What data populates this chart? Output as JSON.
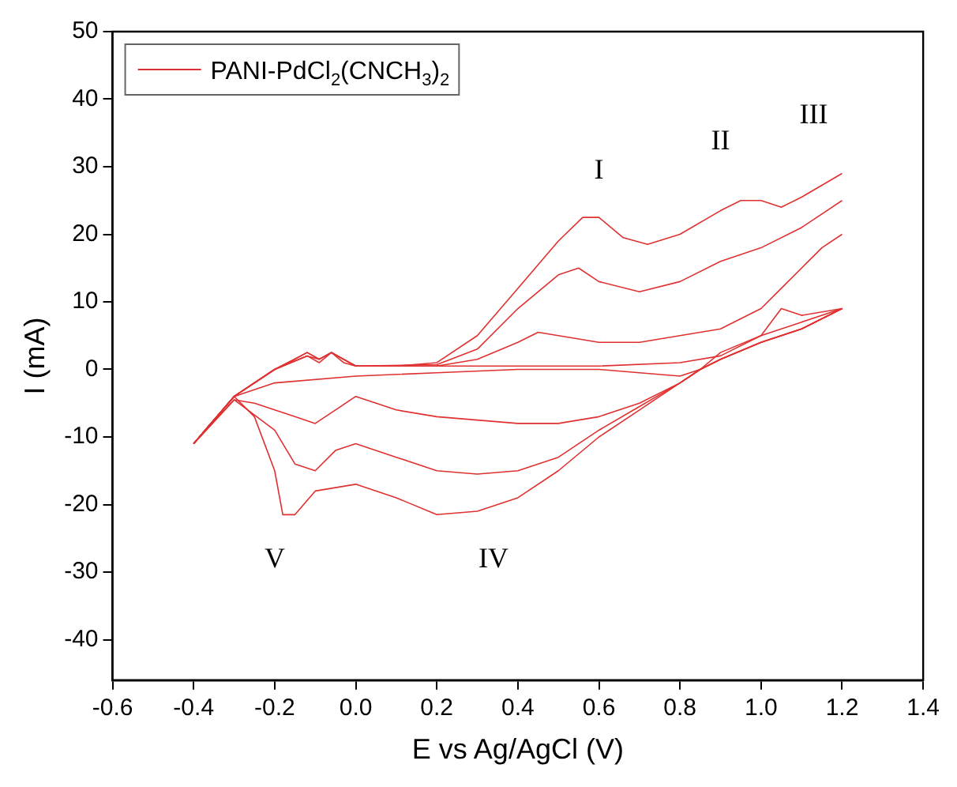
{
  "chart_data": {
    "type": "line",
    "xlabel": "E vs Ag/AgCl (V)",
    "ylabel": "I (mA)",
    "xlim": [
      -0.6,
      1.4
    ],
    "ylim": [
      -46,
      50
    ],
    "xticks": [
      -0.6,
      -0.4,
      -0.2,
      {
        "value": 0,
        "label": "0.0"
      },
      0.2,
      0.4,
      0.6,
      0.8,
      {
        "value": 1,
        "label": "1.0"
      },
      1.2,
      1.4
    ],
    "yticks": [
      -40,
      -30,
      -20,
      -10,
      0,
      10,
      20,
      30,
      40,
      50
    ],
    "grid": false,
    "legend": "top left",
    "marker": "none",
    "line_style": "solid",
    "annotations": [
      "I",
      "II",
      "III",
      "IV",
      "V"
    ],
    "series": [
      {
        "name": "PANI-PdCl$_{2}$(CNCH$_{3}$)$_{2}$",
        "color": "#e03030",
        "x": [
          -0.4,
          -0.3,
          -0.2,
          -0.12,
          -0.09,
          -0.06,
          0,
          0.2,
          0.4,
          0.6,
          0.8,
          0.9,
          1.0,
          1.05,
          1.1,
          1.2
        ],
        "values": [
          -11,
          -4,
          0,
          2,
          1,
          2.5,
          0.5,
          0.5,
          0.5,
          0.5,
          1,
          2,
          5,
          9,
          8,
          9
        ]
      },
      {
        "color": "#e03030",
        "x": [
          -0.4,
          -0.3,
          -0.2,
          0,
          0.2,
          0.4,
          0.6,
          0.7,
          0.8,
          0.85,
          0.9,
          1.0,
          1.1,
          1.2
        ],
        "values": [
          -11,
          -4,
          -2,
          -1,
          -0.5,
          0,
          0,
          -0.5,
          -1,
          0,
          2.5,
          5,
          7,
          9
        ]
      },
      {
        "color": "#e03030",
        "x": [
          -0.4,
          -0.3,
          -0.2,
          -0.12,
          -0.09,
          -0.06,
          0,
          0.2,
          0.3,
          0.4,
          0.45,
          0.5,
          0.6,
          0.7,
          0.8,
          0.9,
          1.0,
          1.05,
          1.1,
          1.15,
          1.2
        ],
        "values": [
          -11,
          -4,
          0,
          2,
          1.5,
          2.5,
          0.5,
          0.5,
          1.5,
          4,
          5.5,
          5,
          4,
          4,
          5,
          6,
          9,
          12,
          15,
          18,
          20
        ]
      },
      {
        "color": "#e03030",
        "x": [
          -0.4,
          -0.3,
          -0.25,
          -0.15,
          -0.1,
          -0.05,
          0,
          0.1,
          0.2,
          0.3,
          0.4,
          0.5,
          0.6,
          0.7,
          0.8,
          0.85,
          0.9,
          1.0,
          1.1,
          1.2
        ],
        "values": [
          -11,
          -4.5,
          -5,
          -7,
          -8,
          -6,
          -4,
          -6,
          -7,
          -7.5,
          -8,
          -8,
          -7,
          -5,
          -2,
          0,
          1.5,
          4,
          6,
          9
        ]
      },
      {
        "color": "#e03030",
        "x": [
          -0.4,
          -0.3,
          -0.2,
          -0.12,
          -0.09,
          -0.06,
          0,
          0.2,
          0.3,
          0.4,
          0.5,
          0.55,
          0.6,
          0.7,
          0.8,
          0.9,
          1.0,
          1.1,
          1.2
        ],
        "values": [
          -11,
          -4,
          0,
          2.5,
          1.5,
          2.5,
          0.5,
          0.7,
          3,
          9,
          14,
          15,
          13,
          11.5,
          13,
          16,
          18,
          21,
          25
        ]
      },
      {
        "color": "#e03030",
        "x": [
          -0.4,
          -0.3,
          -0.2,
          -0.15,
          -0.1,
          -0.05,
          0,
          0.1,
          0.2,
          0.3,
          0.4,
          0.5,
          0.6,
          0.7,
          0.8,
          0.85,
          0.9,
          1.0,
          1.1,
          1.2
        ],
        "values": [
          -11,
          -4.5,
          -9,
          -14,
          -15,
          -12,
          -11,
          -13,
          -15,
          -15.5,
          -15,
          -13,
          -9,
          -5.5,
          -2,
          0,
          1.5,
          4,
          6,
          9
        ]
      },
      {
        "color": "#e03030",
        "x": [
          -0.4,
          -0.3,
          -0.2,
          -0.15,
          -0.12,
          -0.09,
          -0.06,
          -0.03,
          0,
          0.1,
          0.2,
          0.3,
          0.4,
          0.5,
          0.56,
          0.6,
          0.66,
          0.72,
          0.8,
          0.9,
          0.95,
          1.0,
          1.05,
          1.1,
          1.2
        ],
        "values": [
          -11,
          -4,
          0,
          1.5,
          2.5,
          1.5,
          2.5,
          1,
          0.5,
          0.5,
          1,
          5,
          12,
          19,
          22.5,
          22.5,
          19.5,
          18.5,
          20,
          23.5,
          25,
          25,
          24,
          25.5,
          29
        ]
      },
      {
        "color": "#e03030",
        "x": [
          -0.4,
          -0.3,
          -0.25,
          -0.2,
          -0.18,
          -0.15,
          -0.1,
          0,
          0.1,
          0.2,
          0.3,
          0.4,
          0.5,
          0.6,
          0.7,
          0.8,
          0.85,
          0.9,
          1.0,
          1.1,
          1.2
        ],
        "values": [
          -11,
          -4,
          -7,
          -15,
          -21.5,
          -21.5,
          -18,
          -17,
          -19,
          -21.5,
          -21,
          -19,
          -15,
          -10,
          -6,
          -2,
          0,
          1.5,
          4,
          6,
          9
        ]
      }
    ]
  }
}
